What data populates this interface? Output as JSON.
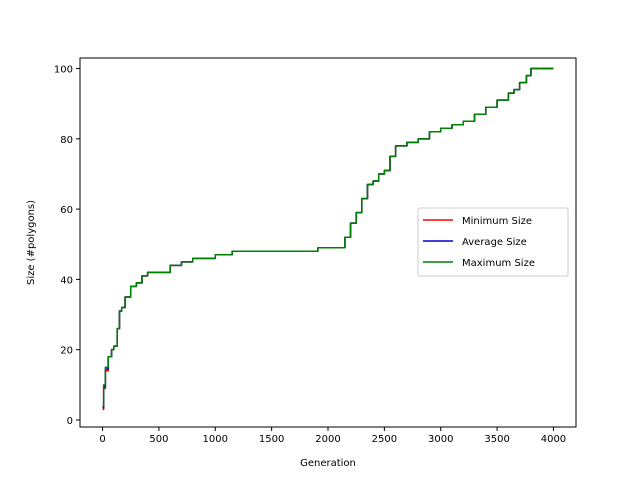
{
  "chart_data": {
    "type": "line",
    "title": "",
    "xlabel": "Generation",
    "ylabel": "Size (#polygons)",
    "xlim": [
      -200,
      4200
    ],
    "ylim": [
      -2,
      103
    ],
    "xticks": [
      0,
      500,
      1000,
      1500,
      2000,
      2500,
      3000,
      3500,
      4000
    ],
    "yticks": [
      0,
      20,
      40,
      60,
      80,
      100
    ],
    "legend_position": "center-right",
    "series": [
      {
        "name": "Minimum Size",
        "color": "#ff0000",
        "x": [
          0,
          10,
          25,
          50,
          80,
          100,
          130,
          150,
          170,
          200,
          250,
          300,
          350,
          400,
          450,
          500,
          550,
          600,
          700,
          800,
          900,
          1000,
          1150,
          1200,
          1500,
          1900,
          1910,
          2140,
          2150,
          2200,
          2250,
          2300,
          2350,
          2400,
          2450,
          2500,
          2550,
          2600,
          2650,
          2700,
          2800,
          2900,
          3000,
          3100,
          3200,
          3300,
          3400,
          3500,
          3600,
          3650,
          3700,
          3760,
          3800,
          4000
        ],
        "values": [
          3,
          9,
          14,
          18,
          20,
          21,
          26,
          31,
          32,
          35,
          38,
          39,
          41,
          42,
          42,
          42,
          42,
          44,
          45,
          46,
          46,
          47,
          48,
          48,
          48,
          48,
          49,
          49,
          52,
          56,
          59,
          63,
          67,
          68,
          70,
          71,
          75,
          78,
          78,
          79,
          80,
          82,
          83,
          84,
          85,
          87,
          89,
          91,
          93,
          94,
          96,
          98,
          100,
          100
        ]
      },
      {
        "name": "Average Size",
        "color": "#0000cc",
        "x": [
          0,
          10,
          25,
          50,
          80,
          100,
          130,
          150,
          170,
          200,
          250,
          300,
          350,
          400,
          450,
          500,
          550,
          600,
          700,
          800,
          900,
          1000,
          1150,
          1200,
          1500,
          1900,
          1910,
          2140,
          2150,
          2200,
          2250,
          2300,
          2350,
          2400,
          2450,
          2500,
          2550,
          2600,
          2650,
          2700,
          2800,
          2900,
          3000,
          3100,
          3200,
          3300,
          3400,
          3500,
          3600,
          3650,
          3700,
          3760,
          3800,
          4000
        ],
        "values": [
          3.5,
          9.5,
          14.5,
          18,
          20,
          21,
          26,
          31,
          32,
          35,
          38,
          39,
          41,
          42,
          42,
          42,
          42,
          44,
          45,
          46,
          46,
          47,
          48,
          48,
          48,
          48,
          49,
          49,
          52,
          56,
          59,
          63,
          67,
          68,
          70,
          71,
          75,
          78,
          78,
          79,
          80,
          82,
          83,
          84,
          85,
          87,
          89,
          91,
          93,
          94,
          96,
          98,
          100,
          100
        ]
      },
      {
        "name": "Maximum Size",
        "color": "#008000",
        "x": [
          0,
          10,
          25,
          50,
          80,
          100,
          130,
          150,
          170,
          200,
          250,
          300,
          350,
          400,
          450,
          500,
          550,
          600,
          700,
          800,
          900,
          1000,
          1150,
          1200,
          1500,
          1900,
          1910,
          2140,
          2150,
          2200,
          2250,
          2300,
          2350,
          2400,
          2450,
          2500,
          2550,
          2600,
          2650,
          2700,
          2800,
          2900,
          3000,
          3100,
          3200,
          3300,
          3400,
          3500,
          3600,
          3650,
          3700,
          3760,
          3800,
          4000
        ],
        "values": [
          4,
          10,
          15,
          18,
          20,
          21,
          26,
          31,
          32,
          35,
          38,
          39,
          41,
          42,
          42,
          42,
          42,
          44,
          45,
          46,
          46,
          47,
          48,
          48,
          48,
          48,
          49,
          49,
          52,
          56,
          59,
          63,
          67,
          68,
          70,
          71,
          75,
          78,
          78,
          79,
          80,
          82,
          83,
          84,
          85,
          87,
          89,
          91,
          93,
          94,
          96,
          98,
          100,
          100
        ]
      }
    ]
  }
}
